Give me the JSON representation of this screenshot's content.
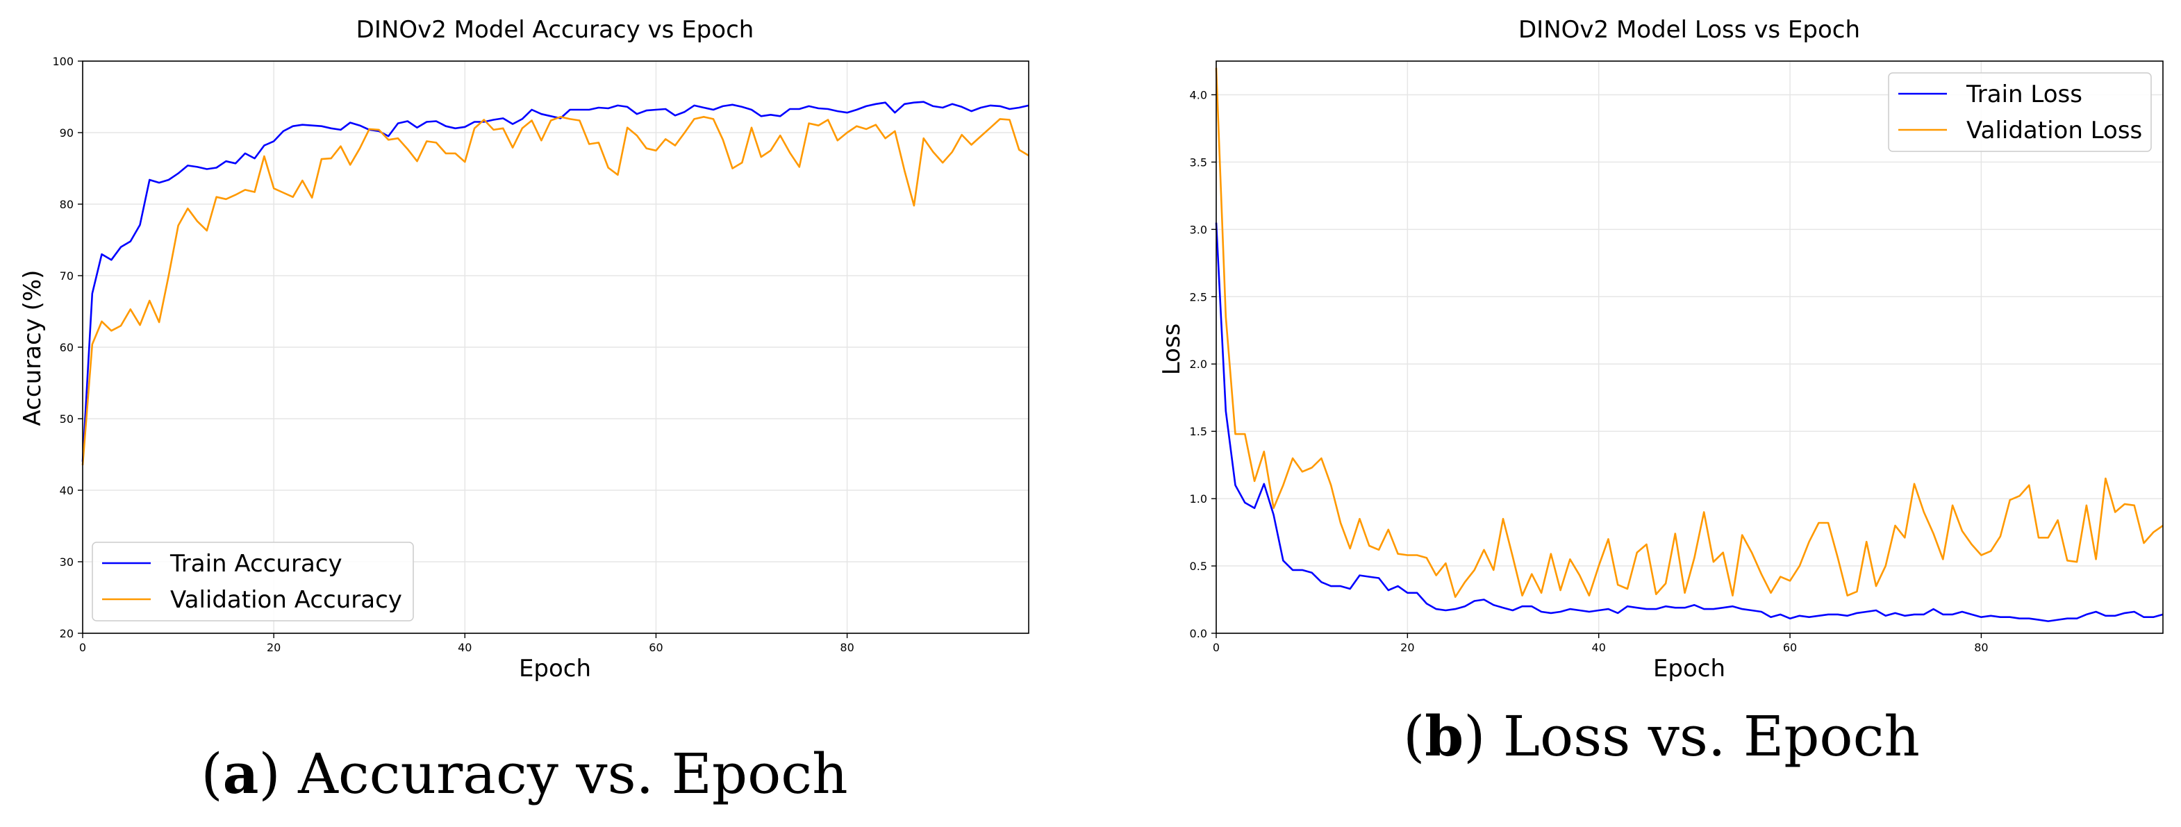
{
  "captions": {
    "a": {
      "letter": "a",
      "text": " Accuracy vs. Epoch"
    },
    "b": {
      "letter": "b",
      "text": " Loss vs. Epoch"
    }
  },
  "chart_data": [
    {
      "id": "acc",
      "type": "line",
      "title": "DINOv2 Model Accuracy vs Epoch",
      "xlabel": "Epoch",
      "ylabel": "Accuracy (%)",
      "xlim": [
        0,
        99
      ],
      "ylim": [
        20,
        100
      ],
      "xticks": [
        0,
        20,
        40,
        60,
        80
      ],
      "yticks": [
        20,
        30,
        40,
        50,
        60,
        70,
        80,
        90,
        100
      ],
      "ytick_labels": [
        "20",
        "30",
        "40",
        "50",
        "60",
        "70",
        "80",
        "90",
        "100"
      ],
      "grid": true,
      "legend_position": "lower-left",
      "series": [
        {
          "name": "Train Accuracy",
          "color": "#0000ff",
          "values": [
            44,
            67.5,
            73,
            72.2,
            74,
            74.8,
            77.1,
            83.4,
            83,
            83.4,
            84.3,
            85.4,
            85.2,
            84.9,
            85.1,
            86,
            85.7,
            87.1,
            86.4,
            88.2,
            88.8,
            90.2,
            90.9,
            91.1,
            91,
            90.9,
            90.6,
            90.4,
            91.4,
            91,
            90.4,
            90.2,
            89.5,
            91.3,
            91.6,
            90.7,
            91.5,
            91.6,
            90.9,
            90.6,
            90.8,
            91.5,
            91.5,
            91.8,
            92,
            91.2,
            91.9,
            93.2,
            92.6,
            92.3,
            92,
            93.2,
            93.2,
            93.2,
            93.5,
            93.4,
            93.8,
            93.6,
            92.6,
            93.1,
            93.2,
            93.3,
            92.4,
            92.9,
            93.8,
            93.5,
            93.2,
            93.7,
            93.9,
            93.6,
            93.2,
            92.3,
            92.5,
            92.3,
            93.3,
            93.3,
            93.7,
            93.4,
            93.3,
            93,
            92.8,
            93.2,
            93.7,
            94,
            94.2,
            92.8,
            94,
            94.2,
            94.3,
            93.7,
            93.5,
            94,
            93.6,
            93,
            93.5,
            93.8,
            93.7,
            93.3,
            93.5,
            93.8
          ]
        },
        {
          "name": "Validation Accuracy",
          "color": "#ff9900",
          "values": [
            43.5,
            60.4,
            63.6,
            62.3,
            63,
            65.3,
            63.1,
            66.5,
            63.5,
            70,
            77,
            79.4,
            77.6,
            76.3,
            81,
            80.7,
            81.3,
            82,
            81.7,
            86.7,
            82.2,
            81.6,
            81,
            83.3,
            80.9,
            86.3,
            86.4,
            88.1,
            85.5,
            87.8,
            90.5,
            90.4,
            89,
            89.2,
            87.7,
            86,
            88.8,
            88.6,
            87.1,
            87.1,
            85.9,
            90.6,
            91.8,
            90.4,
            90.6,
            87.9,
            90.6,
            91.7,
            88.9,
            91.7,
            92.2,
            91.9,
            91.7,
            88.4,
            88.6,
            85.1,
            84.1,
            90.7,
            89.6,
            87.8,
            87.5,
            89.1,
            88.2,
            90,
            91.9,
            92.2,
            91.9,
            89,
            85,
            85.8,
            90.7,
            86.6,
            87.5,
            89.6,
            87.2,
            85.2,
            91.3,
            91,
            91.8,
            88.9,
            90,
            90.9,
            90.5,
            91.1,
            89.2,
            90.2,
            84.7,
            79.8,
            89.2,
            87.3,
            85.8,
            87.3,
            89.7,
            88.3,
            89.5,
            90.7,
            91.9,
            91.8,
            87.6,
            86.8
          ]
        }
      ]
    },
    {
      "id": "loss",
      "type": "line",
      "title": "DINOv2 Model Loss vs Epoch",
      "xlabel": "Epoch",
      "ylabel": "Loss",
      "xlim": [
        0,
        99
      ],
      "ylim": [
        0,
        4.25
      ],
      "xticks": [
        0,
        20,
        40,
        60,
        80
      ],
      "yticks": [
        0,
        0.5,
        1,
        1.5,
        2,
        2.5,
        3,
        3.5,
        4
      ],
      "ytick_labels": [
        "0.0",
        "0.5",
        "1.0",
        "1.5",
        "2.0",
        "2.5",
        "3.0",
        "3.5",
        "4.0"
      ],
      "grid": true,
      "legend_position": "upper-right",
      "series": [
        {
          "name": "Train Loss",
          "color": "#0000ff",
          "values": [
            3.05,
            1.65,
            1.1,
            0.97,
            0.93,
            1.11,
            0.88,
            0.54,
            0.47,
            0.47,
            0.45,
            0.38,
            0.35,
            0.35,
            0.33,
            0.43,
            0.42,
            0.41,
            0.32,
            0.35,
            0.3,
            0.3,
            0.22,
            0.18,
            0.17,
            0.18,
            0.2,
            0.24,
            0.25,
            0.21,
            0.19,
            0.17,
            0.2,
            0.2,
            0.16,
            0.15,
            0.16,
            0.18,
            0.17,
            0.16,
            0.17,
            0.18,
            0.15,
            0.2,
            0.19,
            0.18,
            0.18,
            0.2,
            0.19,
            0.19,
            0.21,
            0.18,
            0.18,
            0.19,
            0.2,
            0.18,
            0.17,
            0.16,
            0.12,
            0.14,
            0.11,
            0.13,
            0.12,
            0.13,
            0.14,
            0.14,
            0.13,
            0.15,
            0.16,
            0.17,
            0.13,
            0.15,
            0.13,
            0.14,
            0.14,
            0.18,
            0.14,
            0.14,
            0.16,
            0.14,
            0.12,
            0.13,
            0.12,
            0.12,
            0.11,
            0.11,
            0.1,
            0.09,
            0.1,
            0.11,
            0.11,
            0.14,
            0.16,
            0.13,
            0.13,
            0.15,
            0.16,
            0.12,
            0.12,
            0.14
          ]
        },
        {
          "name": "Validation Loss",
          "color": "#ff9900",
          "values": [
            4.2,
            2.35,
            1.48,
            1.48,
            1.13,
            1.35,
            0.93,
            1.1,
            1.3,
            1.2,
            1.23,
            1.3,
            1.1,
            0.82,
            0.63,
            0.85,
            0.65,
            0.62,
            0.77,
            0.59,
            0.58,
            0.58,
            0.56,
            0.43,
            0.52,
            0.27,
            0.38,
            0.47,
            0.62,
            0.47,
            0.85,
            0.57,
            0.28,
            0.44,
            0.3,
            0.59,
            0.32,
            0.55,
            0.43,
            0.28,
            0.5,
            0.7,
            0.36,
            0.33,
            0.6,
            0.66,
            0.29,
            0.37,
            0.74,
            0.3,
            0.56,
            0.9,
            0.53,
            0.6,
            0.28,
            0.73,
            0.6,
            0.44,
            0.3,
            0.42,
            0.39,
            0.5,
            0.68,
            0.82,
            0.82,
            0.56,
            0.28,
            0.31,
            0.68,
            0.35,
            0.5,
            0.8,
            0.71,
            1.11,
            0.9,
            0.74,
            0.55,
            0.95,
            0.76,
            0.66,
            0.58,
            0.61,
            0.72,
            0.99,
            1.02,
            1.1,
            0.71,
            0.71,
            0.84,
            0.54,
            0.53,
            0.95,
            0.55,
            1.15,
            0.9,
            0.96,
            0.95,
            0.67,
            0.75,
            0.8
          ]
        }
      ]
    }
  ]
}
